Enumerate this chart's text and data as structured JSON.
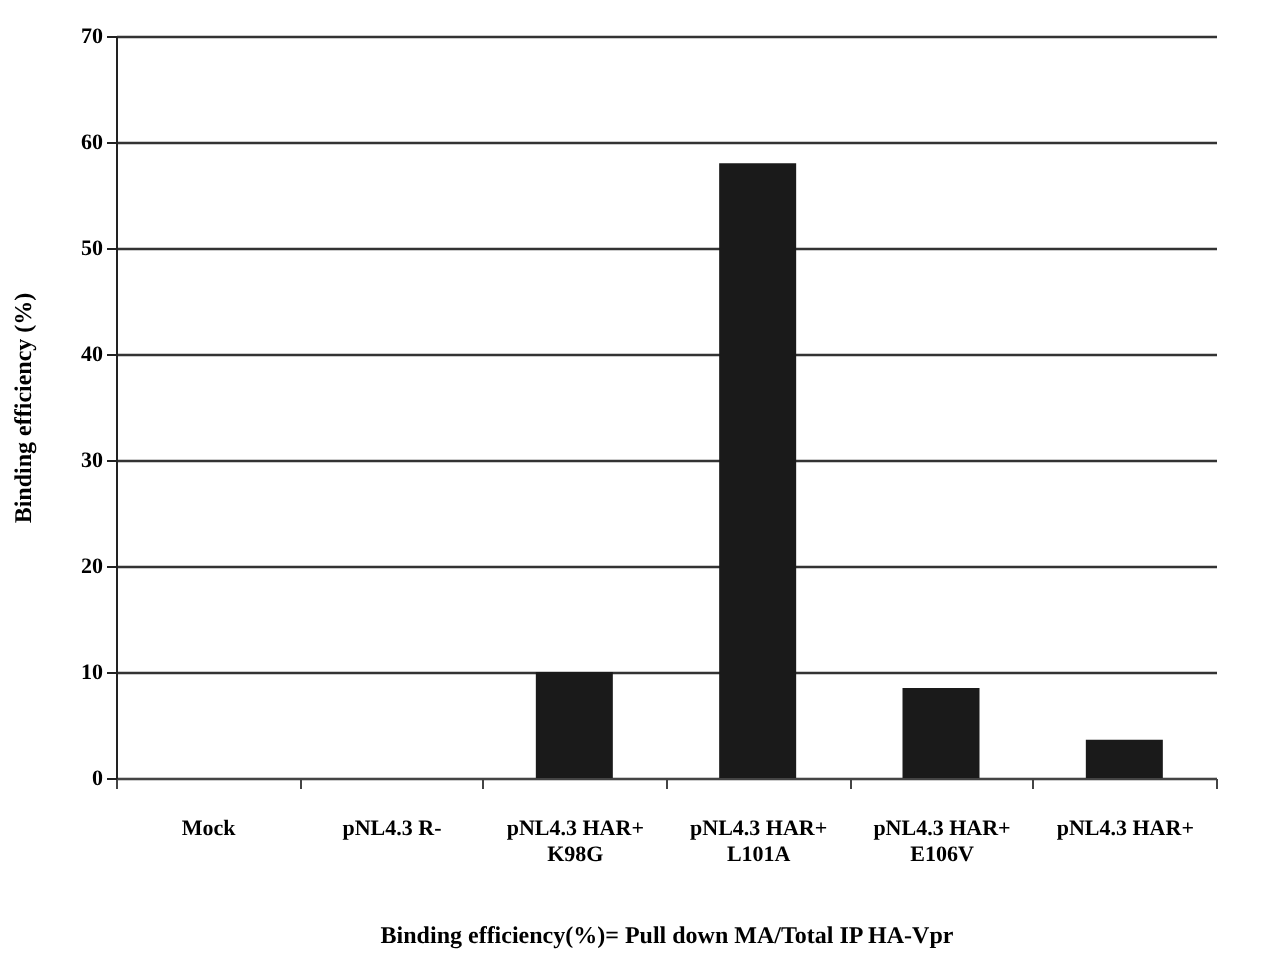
{
  "chart_data": {
    "type": "bar",
    "xlabel": "Binding efficiency(%)= Pull down MA/Total IP HA-Vpr",
    "ylabel": "Binding efficiency (%)",
    "categories": [
      "Mock",
      "pNL4.3 R-",
      "pNL4.3 HAR+\nK98G",
      "pNL4.3 HAR+\nL101A",
      "pNL4.3 HAR+\nE106V",
      "pNL4.3 HAR+"
    ],
    "values": [
      0,
      0,
      10,
      58,
      8.5,
      3.6
    ],
    "color": "#1a1a1a",
    "ylim": [
      0,
      70
    ],
    "yticks": [
      0,
      10,
      20,
      30,
      40,
      50,
      60,
      70
    ],
    "grid": "y"
  }
}
